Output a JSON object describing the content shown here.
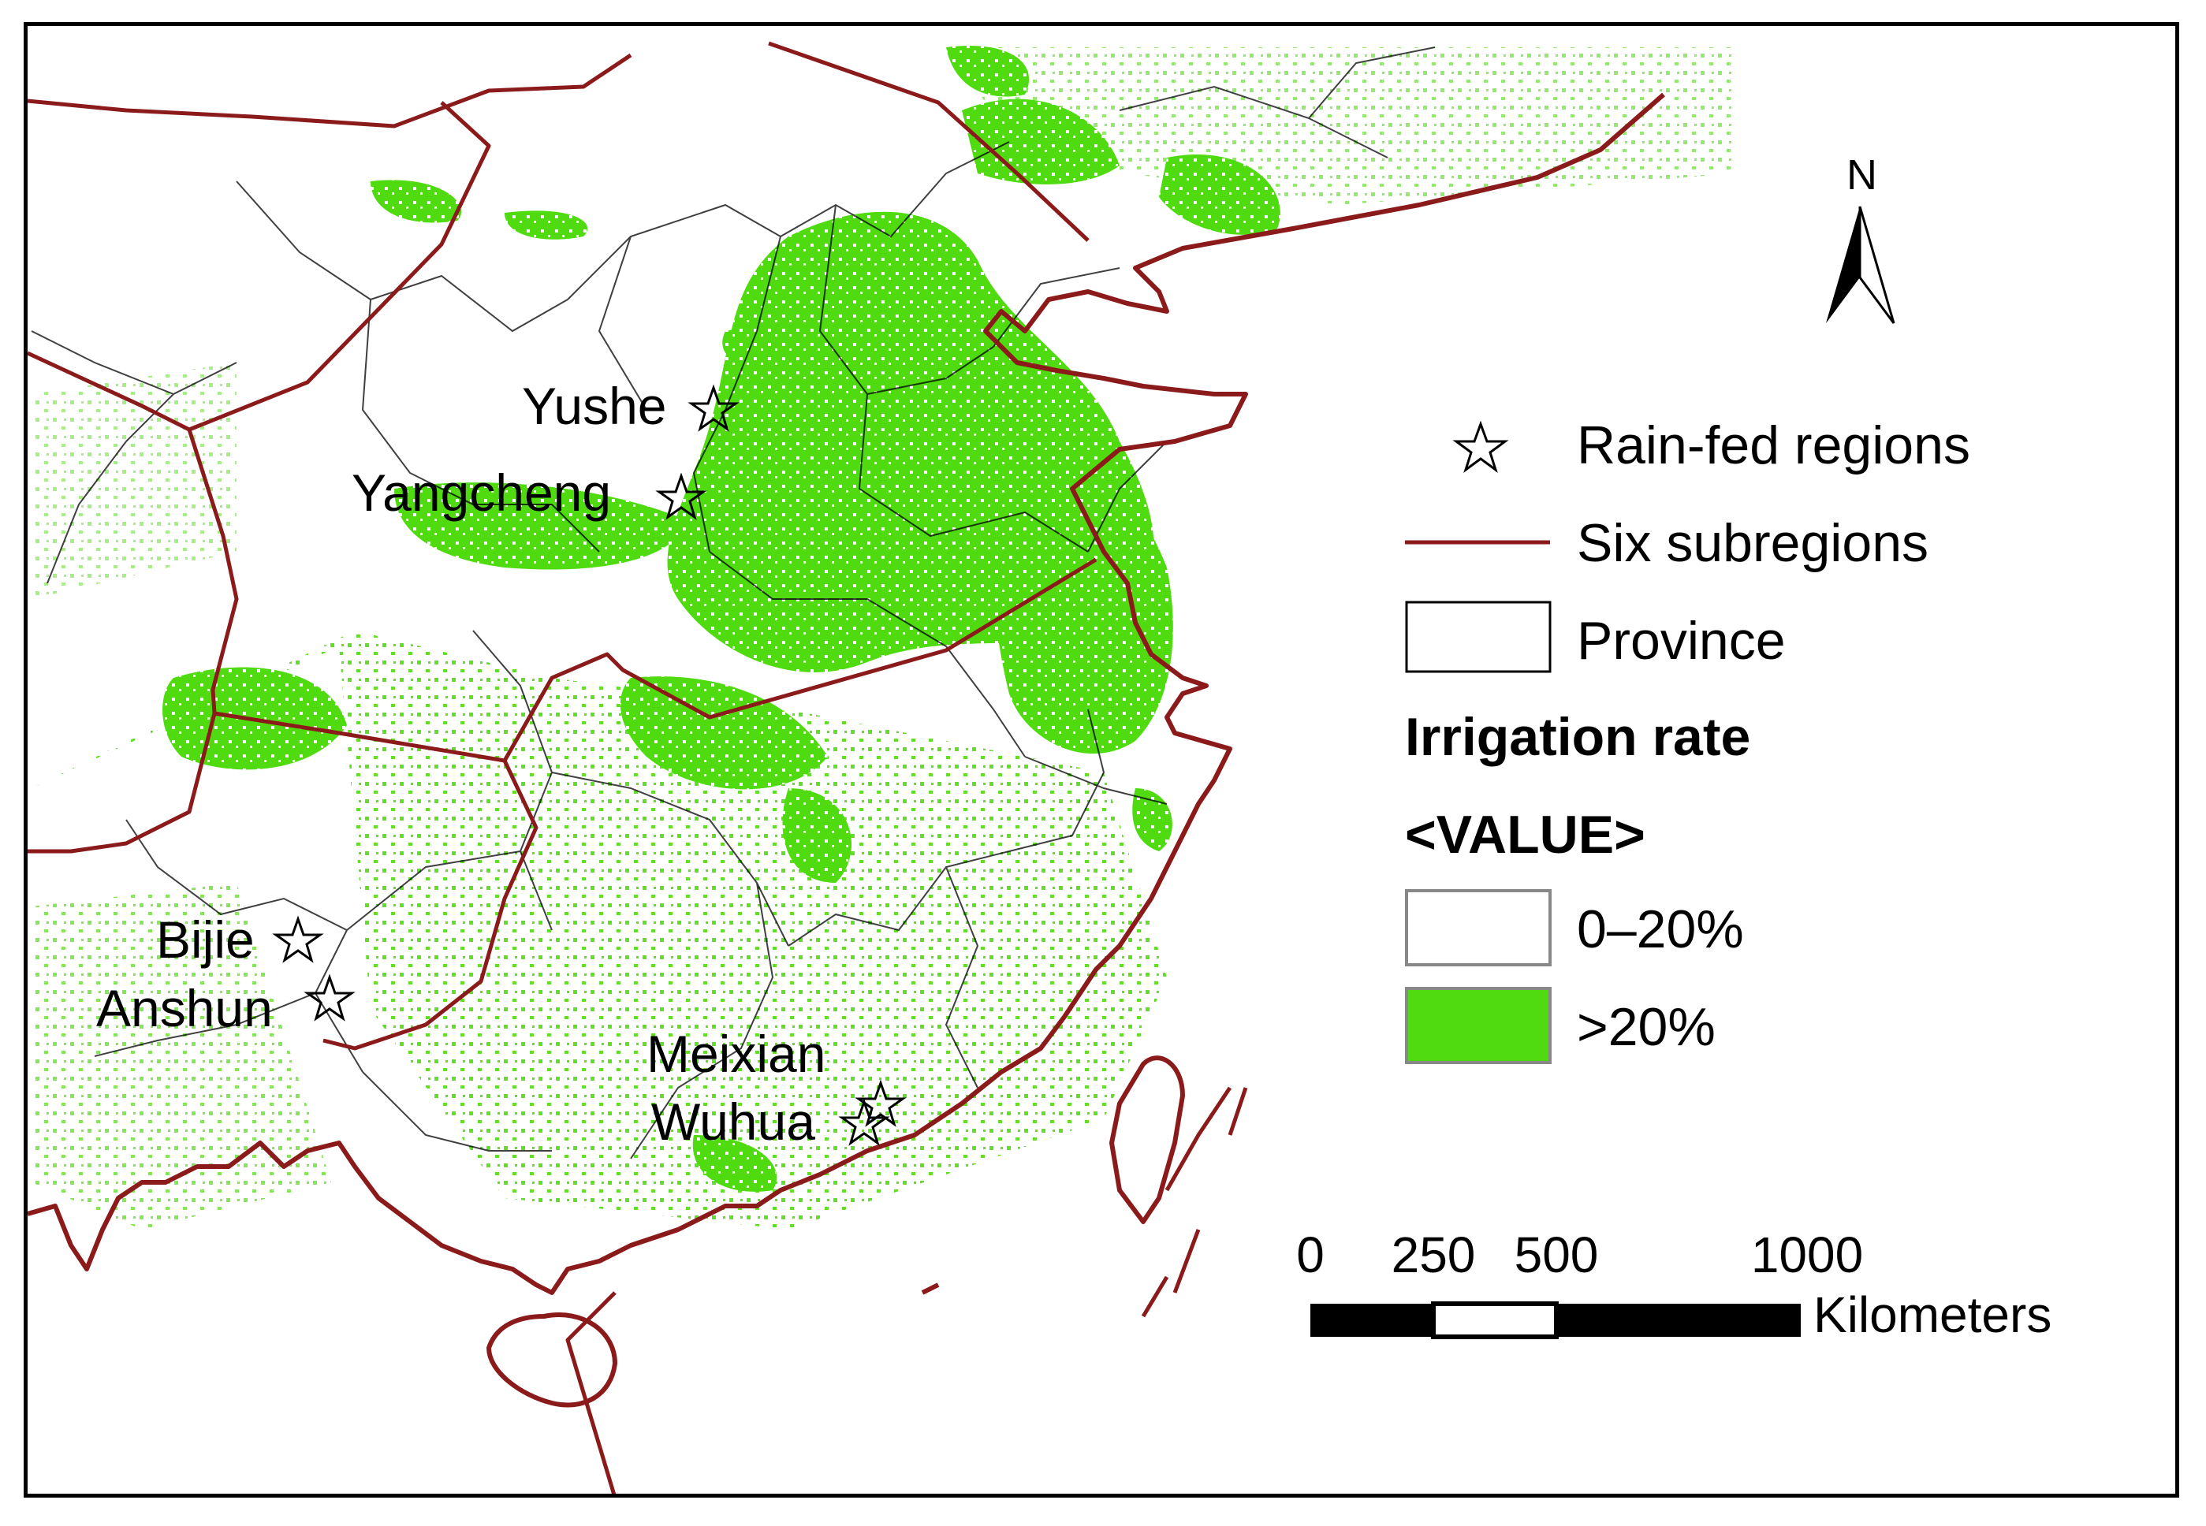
{
  "map": {
    "colors": {
      "irrigated": "#4fdb10",
      "subregion_line": "#8b1a1a",
      "province_line": "#000000",
      "land_background": "#ffffff"
    },
    "north_arrow": {
      "label": "N",
      "icon": "north-arrow-icon"
    },
    "sites": [
      {
        "name": "Yushe",
        "icon": "star-icon"
      },
      {
        "name": "Yangcheng",
        "icon": "star-icon"
      },
      {
        "name": "Bijie",
        "icon": "star-icon"
      },
      {
        "name": "Anshun",
        "icon": "star-icon"
      },
      {
        "name": "Meixian",
        "icon": "star-icon"
      },
      {
        "name": "Wuhua",
        "icon": "star-icon"
      }
    ],
    "legend": {
      "rain_fed_label": "Rain-fed regions",
      "subregions_label": "Six subregions",
      "province_label": "Province",
      "irrigation_title": "Irrigation rate",
      "value_label": "<VALUE>",
      "classes": [
        {
          "label": "0–20%",
          "color": "#ffffff"
        },
        {
          "label": ">20%",
          "color": "#4fdb10"
        }
      ]
    },
    "scale_bar": {
      "ticks": [
        "0",
        "250",
        "500",
        "1000"
      ],
      "unit": "Kilometers"
    }
  }
}
